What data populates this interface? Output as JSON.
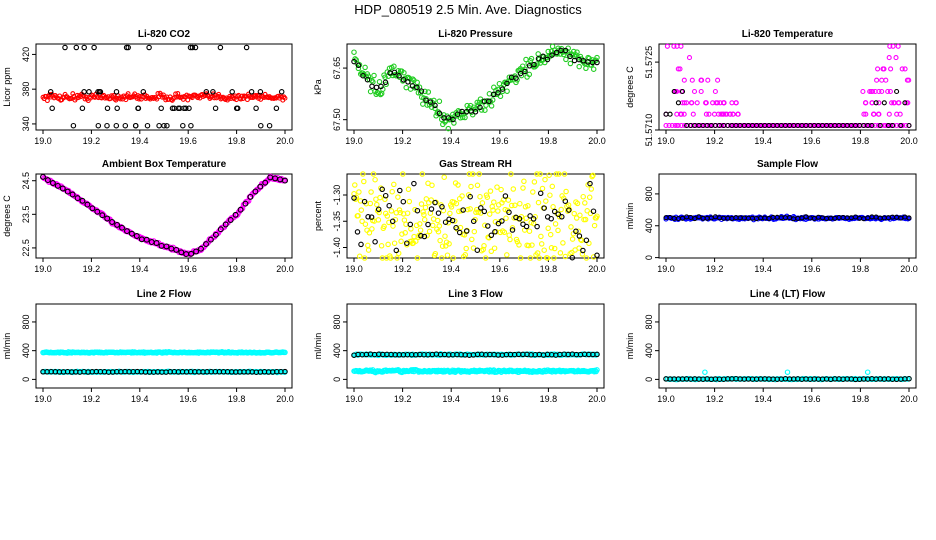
{
  "title": "HDP_080519  2.5 Min. Ave. Diagnostics",
  "colors": {
    "red": "#ff0000",
    "green": "#22cc22",
    "magenta": "#ff00ff",
    "yellow": "#ffff00",
    "blue": "#0000ff",
    "cyan": "#00ffff",
    "black": "#000000"
  },
  "chart_data": [
    {
      "type": "scatter",
      "id": "p1",
      "title": "Li-820 CO2",
      "ylabel": "Licor ppm",
      "xlim": [
        19.0,
        20.0
      ],
      "ylim": [
        333,
        432
      ],
      "xticks": [
        "19.0",
        "19.2",
        "19.4",
        "19.6",
        "19.8",
        "20.0"
      ],
      "yticks": [
        {
          "v": 340,
          "label": "340"
        },
        {
          "v": 380,
          "label": "380"
        },
        {
          "v": 420,
          "label": "420"
        }
      ],
      "series": [
        {
          "name": "line1",
          "color": "red",
          "mode": "band",
          "y": 371,
          "noise": 2,
          "n": 220,
          "size": 1.9
        },
        {
          "name": "line2",
          "color": "black",
          "mode": "levels",
          "levels": [
            338,
            358,
            377,
            428
          ],
          "n": 60,
          "size": 2.2
        }
      ]
    },
    {
      "type": "scatter",
      "id": "p2",
      "title": "Li-820 Pressure",
      "ylabel": "kPa",
      "xlim": [
        19.0,
        20.0
      ],
      "ylim": [
        67.47,
        67.72
      ],
      "xticks": [
        "19.0",
        "19.2",
        "19.4",
        "19.6",
        "19.8",
        "20.0"
      ],
      "yticks": [
        {
          "v": 67.5,
          "label": "67.50"
        },
        {
          "v": 67.65,
          "label": "67.65"
        }
      ],
      "series": [
        {
          "name": "line1",
          "color": "green",
          "mode": "curve",
          "curve": [
            [
              19.0,
              67.67
            ],
            [
              19.05,
              67.62
            ],
            [
              19.1,
              67.58
            ],
            [
              19.15,
              67.64
            ],
            [
              19.2,
              67.62
            ],
            [
              19.25,
              67.6
            ],
            [
              19.3,
              67.56
            ],
            [
              19.38,
              67.5
            ],
            [
              19.45,
              67.52
            ],
            [
              19.55,
              67.55
            ],
            [
              19.65,
              67.62
            ],
            [
              19.75,
              67.67
            ],
            [
              19.85,
              67.7
            ],
            [
              19.92,
              67.67
            ],
            [
              20.0,
              67.67
            ]
          ],
          "noise": 0.012,
          "n": 220,
          "size": 2.2
        },
        {
          "name": "line2",
          "color": "black",
          "mode": "curve",
          "curve": [
            [
              19.0,
              67.67
            ],
            [
              19.05,
              67.62
            ],
            [
              19.1,
              67.58
            ],
            [
              19.15,
              67.64
            ],
            [
              19.2,
              67.62
            ],
            [
              19.25,
              67.6
            ],
            [
              19.3,
              67.56
            ],
            [
              19.38,
              67.5
            ],
            [
              19.45,
              67.52
            ],
            [
              19.55,
              67.55
            ],
            [
              19.65,
              67.62
            ],
            [
              19.75,
              67.67
            ],
            [
              19.85,
              67.7
            ],
            [
              19.92,
              67.67
            ],
            [
              20.0,
              67.67
            ]
          ],
          "noise": 0.005,
          "n": 55,
          "size": 2.2
        }
      ]
    },
    {
      "type": "scatter",
      "id": "p3",
      "title": "Li-820 Temperature",
      "ylabel": "degrees C",
      "xlim": [
        19.0,
        20.0
      ],
      "ylim": [
        51.571,
        51.5729
      ],
      "xticks": [
        "19.0",
        "19.2",
        "19.4",
        "19.6",
        "19.8",
        "20.0"
      ],
      "yticks": [
        {
          "v": 51.571,
          "label": "51.5710"
        },
        {
          "v": 51.5725,
          "label": "51.5725"
        }
      ],
      "series": [
        {
          "name": "line1",
          "color": "magenta",
          "mode": "temp",
          "n": 260,
          "size": 2.0
        },
        {
          "name": "line2",
          "color": "black",
          "mode": "tempblack",
          "n": 60,
          "size": 2.0
        }
      ]
    },
    {
      "type": "scatter",
      "id": "p4",
      "title": "Ambient Box Temperature",
      "ylabel": "degrees C",
      "xlim": [
        19.0,
        20.0
      ],
      "ylim": [
        22.2,
        24.7
      ],
      "xticks": [
        "19.0",
        "19.2",
        "19.4",
        "19.6",
        "19.8",
        "20.0"
      ],
      "yticks": [
        {
          "v": 22.5,
          "label": "22.5"
        },
        {
          "v": 23.5,
          "label": "23.5"
        },
        {
          "v": 24.5,
          "label": "24.5"
        }
      ],
      "series": [
        {
          "name": "line1",
          "color": "magenta",
          "mode": "curve",
          "curve": [
            [
              19.0,
              24.6
            ],
            [
              19.1,
              24.2
            ],
            [
              19.2,
              23.7
            ],
            [
              19.3,
              23.2
            ],
            [
              19.4,
              22.8
            ],
            [
              19.5,
              22.55
            ],
            [
              19.6,
              22.3
            ],
            [
              19.65,
              22.45
            ],
            [
              19.7,
              22.8
            ],
            [
              19.8,
              23.5
            ],
            [
              19.88,
              24.2
            ],
            [
              19.94,
              24.6
            ],
            [
              20.0,
              24.5
            ]
          ],
          "noise": 0.02,
          "n": 200,
          "size": 2.4
        },
        {
          "name": "line2",
          "color": "black",
          "mode": "curve",
          "curve": [
            [
              19.0,
              24.6
            ],
            [
              19.1,
              24.2
            ],
            [
              19.2,
              23.7
            ],
            [
              19.3,
              23.2
            ],
            [
              19.4,
              22.8
            ],
            [
              19.5,
              22.55
            ],
            [
              19.6,
              22.3
            ],
            [
              19.65,
              22.45
            ],
            [
              19.7,
              22.8
            ],
            [
              19.8,
              23.5
            ],
            [
              19.88,
              24.2
            ],
            [
              19.94,
              24.6
            ],
            [
              20.0,
              24.5
            ]
          ],
          "noise": 0.01,
          "n": 50,
          "size": 2.4
        }
      ]
    },
    {
      "type": "scatter",
      "id": "p5",
      "title": "Gas Stream RH",
      "ylabel": "percent",
      "xlim": [
        19.0,
        20.0
      ],
      "ylim": [
        -1.42,
        -1.26
      ],
      "xticks": [
        "19.0",
        "19.2",
        "19.4",
        "19.6",
        "19.8",
        "20.0"
      ],
      "yticks": [
        {
          "v": -1.4,
          "label": "-1.40"
        },
        {
          "v": -1.35,
          "label": "-1.35"
        },
        {
          "v": -1.3,
          "label": "-1.30"
        }
      ],
      "series": [
        {
          "name": "line1",
          "color": "yellow",
          "mode": "band",
          "y": -1.345,
          "noise": 0.05,
          "n": 300,
          "size": 2.2
        },
        {
          "name": "line2",
          "color": "black",
          "mode": "band",
          "y": -1.345,
          "noise": 0.035,
          "n": 70,
          "size": 2.2
        }
      ]
    },
    {
      "type": "scatter",
      "id": "p6",
      "title": "Sample Flow",
      "ylabel": "ml/min",
      "xlim": [
        19.0,
        20.0
      ],
      "ylim": [
        -5,
        1050
      ],
      "xticks": [
        "19.0",
        "19.2",
        "19.4",
        "19.6",
        "19.8",
        "20.0"
      ],
      "yticks": [
        {
          "v": 0,
          "label": "0"
        },
        {
          "v": 400,
          "label": "400"
        },
        {
          "v": 800,
          "label": "800"
        }
      ],
      "series": [
        {
          "name": "line1",
          "color": "blue",
          "mode": "band",
          "y": 495,
          "noise": 8,
          "n": 220,
          "size": 2.0
        },
        {
          "name": "line2",
          "color": "black",
          "mode": "band",
          "y": 500,
          "noise": 6,
          "n": 60,
          "size": 2.0
        }
      ]
    },
    {
      "type": "scatter",
      "id": "p7",
      "title": "Line 2 Flow",
      "ylabel": "ml/min",
      "xlim": [
        19.0,
        20.0
      ],
      "ylim": [
        -120,
        1050
      ],
      "xticks": [
        "19.0",
        "19.2",
        "19.4",
        "19.6",
        "19.8",
        "20.0"
      ],
      "yticks": [
        {
          "v": 0,
          "label": "0"
        },
        {
          "v": 400,
          "label": "400"
        },
        {
          "v": 800,
          "label": "800"
        }
      ],
      "series": [
        {
          "name": "line1",
          "color": "cyan",
          "mode": "band",
          "y": 375,
          "noise": 4,
          "n": 220,
          "size": 2.2
        },
        {
          "name": "line2",
          "color": "cyan",
          "mode": "band",
          "y": 105,
          "noise": 3,
          "n": 220,
          "size": 2.2
        },
        {
          "name": "line3",
          "color": "black",
          "mode": "band",
          "y": 105,
          "noise": 2,
          "n": 60,
          "size": 2.2
        }
      ]
    },
    {
      "type": "scatter",
      "id": "p8",
      "title": "Line 3 Flow",
      "ylabel": "ml/min",
      "xlim": [
        19.0,
        20.0
      ],
      "ylim": [
        -120,
        1050
      ],
      "xticks": [
        "19.0",
        "19.2",
        "19.4",
        "19.6",
        "19.8",
        "20.0"
      ],
      "yticks": [
        {
          "v": 0,
          "label": "0"
        },
        {
          "v": 400,
          "label": "400"
        },
        {
          "v": 800,
          "label": "800"
        }
      ],
      "series": [
        {
          "name": "line1",
          "color": "cyan",
          "mode": "band",
          "y": 345,
          "noise": 4,
          "n": 200,
          "size": 2.2
        },
        {
          "name": "line2",
          "color": "cyan",
          "mode": "band",
          "y": 115,
          "noise": 8,
          "n": 260,
          "size": 2.2
        },
        {
          "name": "line3",
          "color": "black",
          "mode": "band",
          "y": 345,
          "noise": 3,
          "n": 60,
          "size": 2.2
        }
      ]
    },
    {
      "type": "scatter",
      "id": "p9",
      "title": "Line 4 (LT) Flow",
      "ylabel": "ml/min",
      "xlim": [
        19.0,
        20.0
      ],
      "ylim": [
        -120,
        1050
      ],
      "xticks": [
        "19.0",
        "19.2",
        "19.4",
        "19.6",
        "19.8",
        "20.0"
      ],
      "yticks": [
        {
          "v": 0,
          "label": "0"
        },
        {
          "v": 400,
          "label": "400"
        },
        {
          "v": 800,
          "label": "800"
        }
      ],
      "series": [
        {
          "name": "line1",
          "color": "cyan",
          "mode": "band",
          "y": 5,
          "noise": 3,
          "n": 150,
          "size": 2.2
        },
        {
          "name": "line2",
          "color": "black",
          "mode": "band",
          "y": 5,
          "noise": 2,
          "n": 60,
          "size": 2.2
        },
        {
          "name": "line3",
          "color": "cyan",
          "mode": "spikes",
          "xs": [
            19.16,
            19.5,
            19.83
          ],
          "y": 100,
          "size": 2.2
        }
      ]
    }
  ]
}
